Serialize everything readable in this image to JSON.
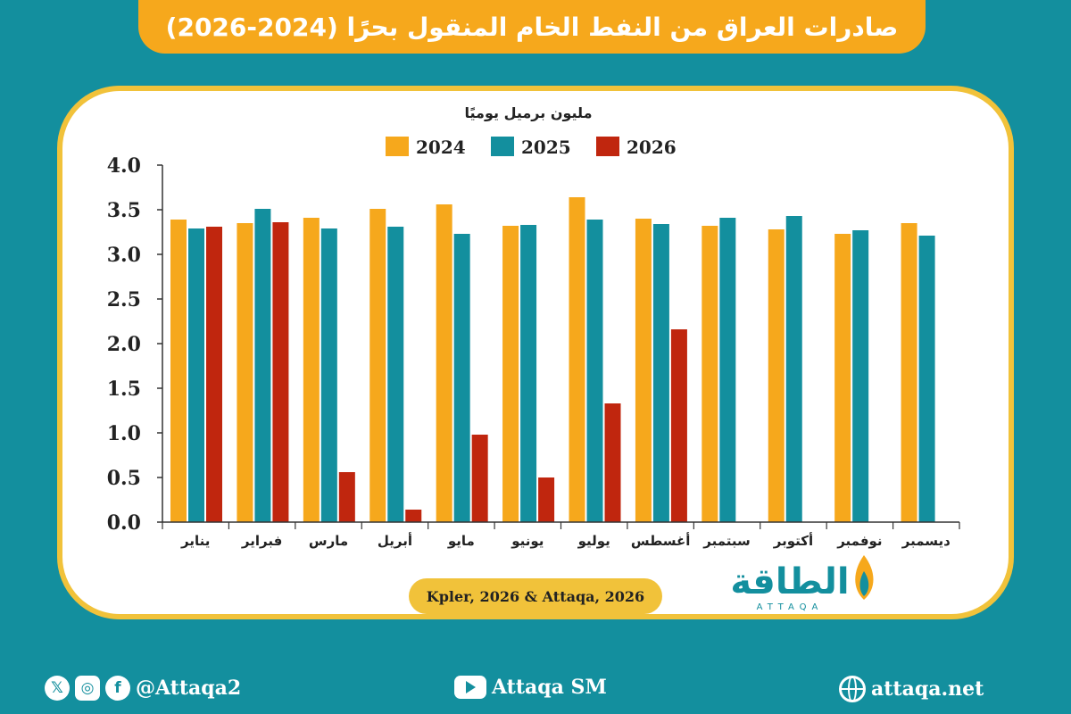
{
  "title": "صادرات العراق من النفط الخام المنقول بحرًا (2024-2026)",
  "source": "Kpler, 2026 & Attaqa, 2026",
  "logo": {
    "arabic": "الطاقة",
    "latin": "ATTAQA"
  },
  "footer": {
    "social_handle": "@Attaqa2",
    "youtube": "Attaqa SM",
    "website": "attaqa.net"
  },
  "colors": {
    "background": "#138f9e",
    "title_bar": "#f6a81c",
    "panel_border": "#f1c23a"
  },
  "icons": [
    "x-icon",
    "instagram-icon",
    "facebook-icon",
    "youtube-icon",
    "globe-icon"
  ],
  "chart_data": {
    "type": "bar",
    "unit_label": "مليون برميل يوميًا",
    "categories": [
      "يناير",
      "فبراير",
      "مارس",
      "أبريل",
      "مايو",
      "يونيو",
      "يوليو",
      "أغسطس",
      "سبتمبر",
      "أكتوبر",
      "نوفمبر",
      "ديسمبر"
    ],
    "yticks": [
      "4.0",
      "3.5",
      "3.0",
      "2.5",
      "2.0",
      "1.5",
      "1.0",
      "0.5",
      "0.0"
    ],
    "ylim": [
      0,
      4
    ],
    "grid": false,
    "legend_position": "top",
    "series": [
      {
        "name": "2024",
        "color": "#f6a81c",
        "values": [
          3.39,
          3.35,
          3.41,
          3.51,
          3.56,
          3.32,
          3.64,
          3.4,
          3.32,
          3.28,
          3.23,
          3.35
        ]
      },
      {
        "name": "2025",
        "color": "#138f9e",
        "values": [
          3.29,
          3.51,
          3.29,
          3.31,
          3.23,
          3.33,
          3.39,
          3.34,
          3.41,
          3.43,
          3.27,
          3.21
        ]
      },
      {
        "name": "2026",
        "color": "#c0260e",
        "values": [
          3.31,
          3.36,
          0.56,
          0.14,
          0.98,
          0.5,
          1.33,
          2.16,
          null,
          null,
          null,
          null
        ]
      }
    ]
  }
}
